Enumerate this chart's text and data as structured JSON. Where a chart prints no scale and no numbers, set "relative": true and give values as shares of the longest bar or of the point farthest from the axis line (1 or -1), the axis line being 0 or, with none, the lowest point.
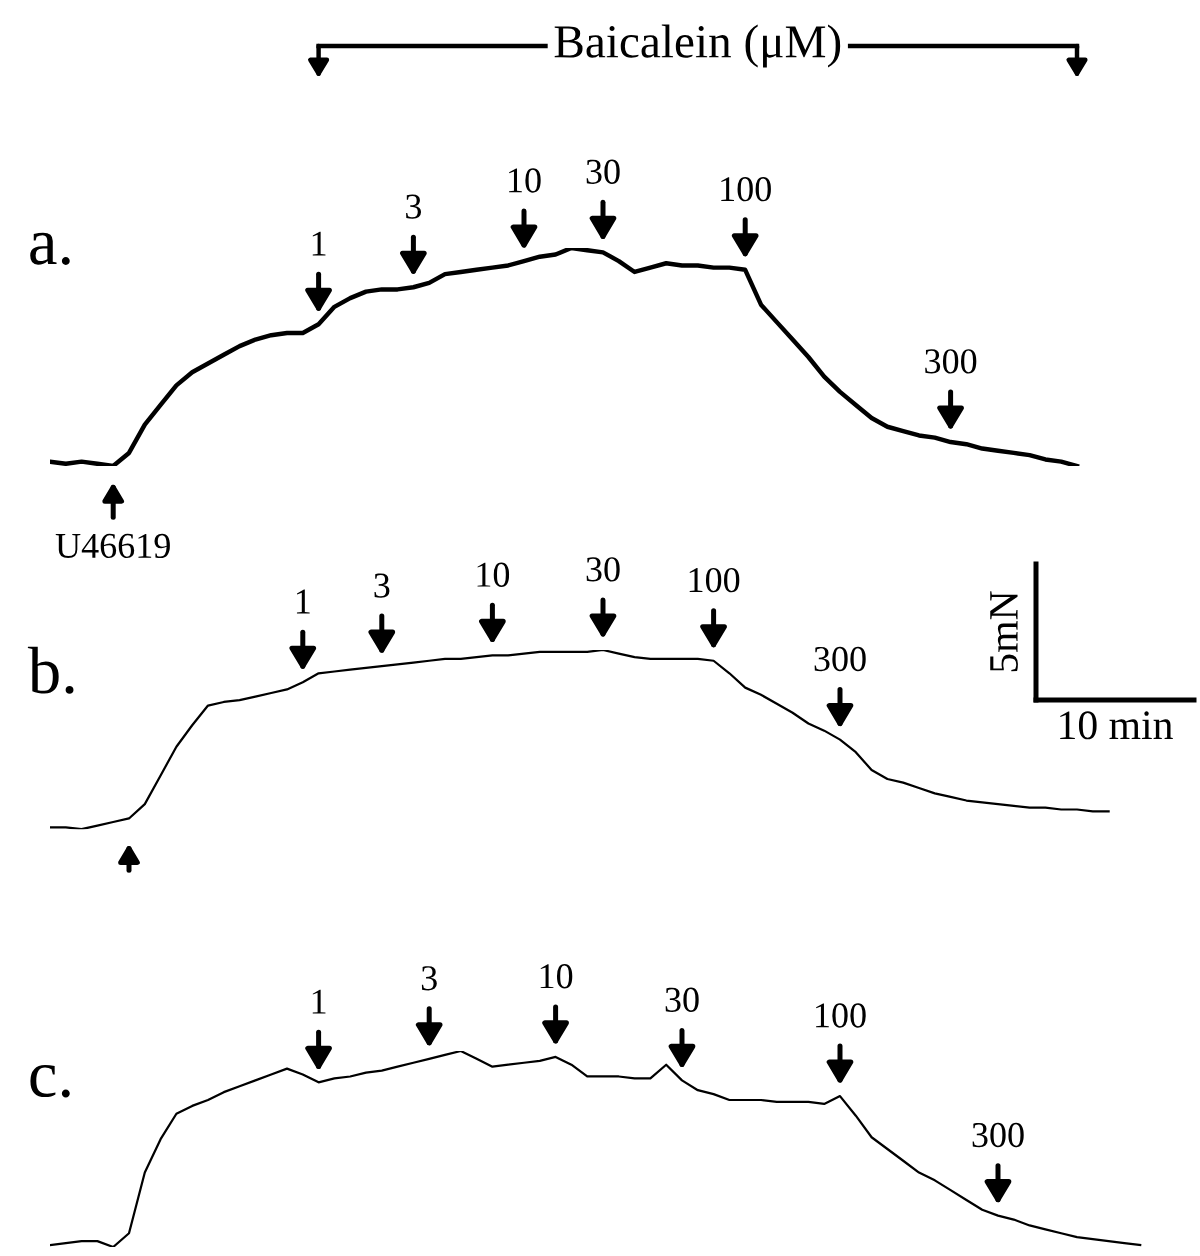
{
  "chart_data": [
    {
      "type": "line",
      "title": "Baicalein (μM)",
      "relative": true,
      "color": "#000000",
      "tick_labels": false,
      "categories": [
        null,
        null,
        null,
        null,
        null,
        null,
        null,
        null,
        null,
        null,
        null,
        null,
        null,
        null,
        null,
        null,
        null,
        null,
        null,
        null,
        null,
        null,
        null,
        null,
        null,
        null,
        null,
        null,
        null,
        null,
        null,
        null,
        null,
        null,
        null,
        null,
        null,
        null,
        null,
        null,
        null,
        null,
        null,
        null,
        null,
        null,
        null,
        null,
        null,
        null,
        null,
        null,
        null,
        null,
        null,
        null,
        null,
        null,
        null,
        null,
        null,
        null,
        null,
        null,
        null,
        null,
        null,
        null,
        null,
        null
      ],
      "values": [
        0.02,
        0.01,
        0.02,
        0.01,
        0.0,
        0.06,
        0.19,
        0.28,
        0.37,
        0.43,
        0.47,
        0.51,
        0.55,
        0.58,
        0.6,
        0.61,
        0.61,
        0.65,
        0.73,
        0.77,
        0.8,
        0.81,
        0.81,
        0.82,
        0.84,
        0.88,
        0.89,
        0.9,
        0.91,
        0.92,
        0.94,
        0.96,
        0.97,
        1.0,
        0.99,
        0.98,
        0.94,
        0.89,
        0.91,
        0.93,
        0.92,
        0.92,
        0.91,
        0.91,
        0.9,
        0.74,
        0.66,
        0.58,
        0.5,
        0.41,
        0.34,
        0.28,
        0.22,
        0.18,
        0.16,
        0.14,
        0.13,
        0.11,
        0.1,
        0.08,
        0.07,
        0.06,
        0.05,
        0.03,
        0.02,
        0.0,
        null,
        null,
        null,
        null
      ],
      "annotations": [
        "a.",
        {
          "text": "U46619",
          "y": 0.0
        },
        {
          "text": "1",
          "y": 0.65
        },
        {
          "text": "3",
          "y": 0.82
        },
        {
          "text": "10",
          "y": 0.94
        },
        {
          "text": "30",
          "y": 0.98
        },
        {
          "text": "100",
          "y": 0.9
        },
        {
          "text": "300",
          "y": 0.11
        }
      ]
    },
    {
      "type": "line",
      "relative": true,
      "color": "#000000",
      "tick_labels": false,
      "categories": [
        null,
        null,
        null,
        null,
        null,
        null,
        null,
        null,
        null,
        null,
        null,
        null,
        null,
        null,
        null,
        null,
        null,
        null,
        null,
        null,
        null,
        null,
        null,
        null,
        null,
        null,
        null,
        null,
        null,
        null,
        null,
        null,
        null,
        null,
        null,
        null,
        null,
        null,
        null,
        null,
        null,
        null,
        null,
        null,
        null,
        null,
        null,
        null,
        null,
        null,
        null,
        null,
        null,
        null,
        null,
        null,
        null,
        null,
        null,
        null,
        null,
        null,
        null,
        null,
        null,
        null,
        null,
        null,
        null,
        null
      ],
      "values": [
        0.01,
        0.01,
        0.0,
        0.02,
        0.04,
        0.06,
        0.14,
        0.3,
        0.46,
        0.58,
        0.69,
        0.71,
        0.72,
        0.74,
        0.76,
        0.78,
        0.82,
        0.87,
        0.88,
        0.89,
        0.9,
        0.91,
        0.92,
        0.93,
        0.94,
        0.95,
        0.95,
        0.96,
        0.97,
        0.97,
        0.98,
        0.99,
        0.99,
        0.99,
        0.99,
        1.0,
        0.98,
        0.96,
        0.95,
        0.95,
        0.95,
        0.95,
        0.94,
        0.87,
        0.79,
        0.75,
        0.7,
        0.65,
        0.59,
        0.55,
        0.5,
        0.43,
        0.33,
        0.28,
        0.26,
        0.23,
        0.2,
        0.18,
        0.16,
        0.15,
        0.14,
        0.13,
        0.12,
        0.12,
        0.11,
        0.11,
        0.1,
        0.1,
        null,
        null
      ],
      "annotations": [
        "b.",
        "5mN",
        "10 min",
        {
          "text": "1",
          "y": 0.82
        },
        {
          "text": "3",
          "y": 0.91
        },
        {
          "text": "10",
          "y": 0.97
        },
        {
          "text": "30",
          "y": 1.0
        },
        {
          "text": "100",
          "y": 0.94
        },
        {
          "text": "300",
          "y": 0.5
        }
      ]
    },
    {
      "type": "line",
      "relative": true,
      "color": "#000000",
      "tick_labels": false,
      "categories": [
        null,
        null,
        null,
        null,
        null,
        null,
        null,
        null,
        null,
        null,
        null,
        null,
        null,
        null,
        null,
        null,
        null,
        null,
        null,
        null,
        null,
        null,
        null,
        null,
        null,
        null,
        null,
        null,
        null,
        null,
        null,
        null,
        null,
        null,
        null,
        null,
        null,
        null,
        null,
        null,
        null,
        null,
        null,
        null,
        null,
        null,
        null,
        null,
        null,
        null,
        null,
        null,
        null,
        null,
        null,
        null,
        null,
        null,
        null,
        null,
        null,
        null,
        null,
        null,
        null,
        null,
        null,
        null,
        null,
        null
      ],
      "values": [
        0.01,
        0.02,
        0.03,
        0.03,
        0.0,
        0.07,
        0.38,
        0.55,
        0.68,
        0.72,
        0.75,
        0.79,
        0.82,
        0.85,
        0.88,
        0.91,
        0.88,
        0.84,
        0.86,
        0.87,
        0.89,
        0.9,
        0.92,
        0.94,
        0.96,
        0.98,
        1.0,
        0.96,
        0.92,
        0.93,
        0.94,
        0.95,
        0.97,
        0.93,
        0.87,
        0.87,
        0.87,
        0.86,
        0.86,
        0.93,
        0.85,
        0.8,
        0.78,
        0.75,
        0.75,
        0.75,
        0.74,
        0.74,
        0.74,
        0.73,
        0.77,
        0.67,
        0.56,
        0.5,
        0.44,
        0.38,
        0.34,
        0.29,
        0.24,
        0.19,
        0.16,
        0.14,
        0.11,
        0.09,
        0.07,
        0.05,
        0.04,
        0.03,
        0.02,
        0.01
      ],
      "annotations": [
        "c.",
        {
          "text": "1",
          "y": 0.84
        },
        {
          "text": "3",
          "y": 0.96
        },
        {
          "text": "10",
          "y": 0.97
        },
        {
          "text": "30",
          "y": 0.85
        },
        {
          "text": "100",
          "y": 0.77
        },
        {
          "text": "300",
          "y": 0.16
        }
      ]
    }
  ]
}
